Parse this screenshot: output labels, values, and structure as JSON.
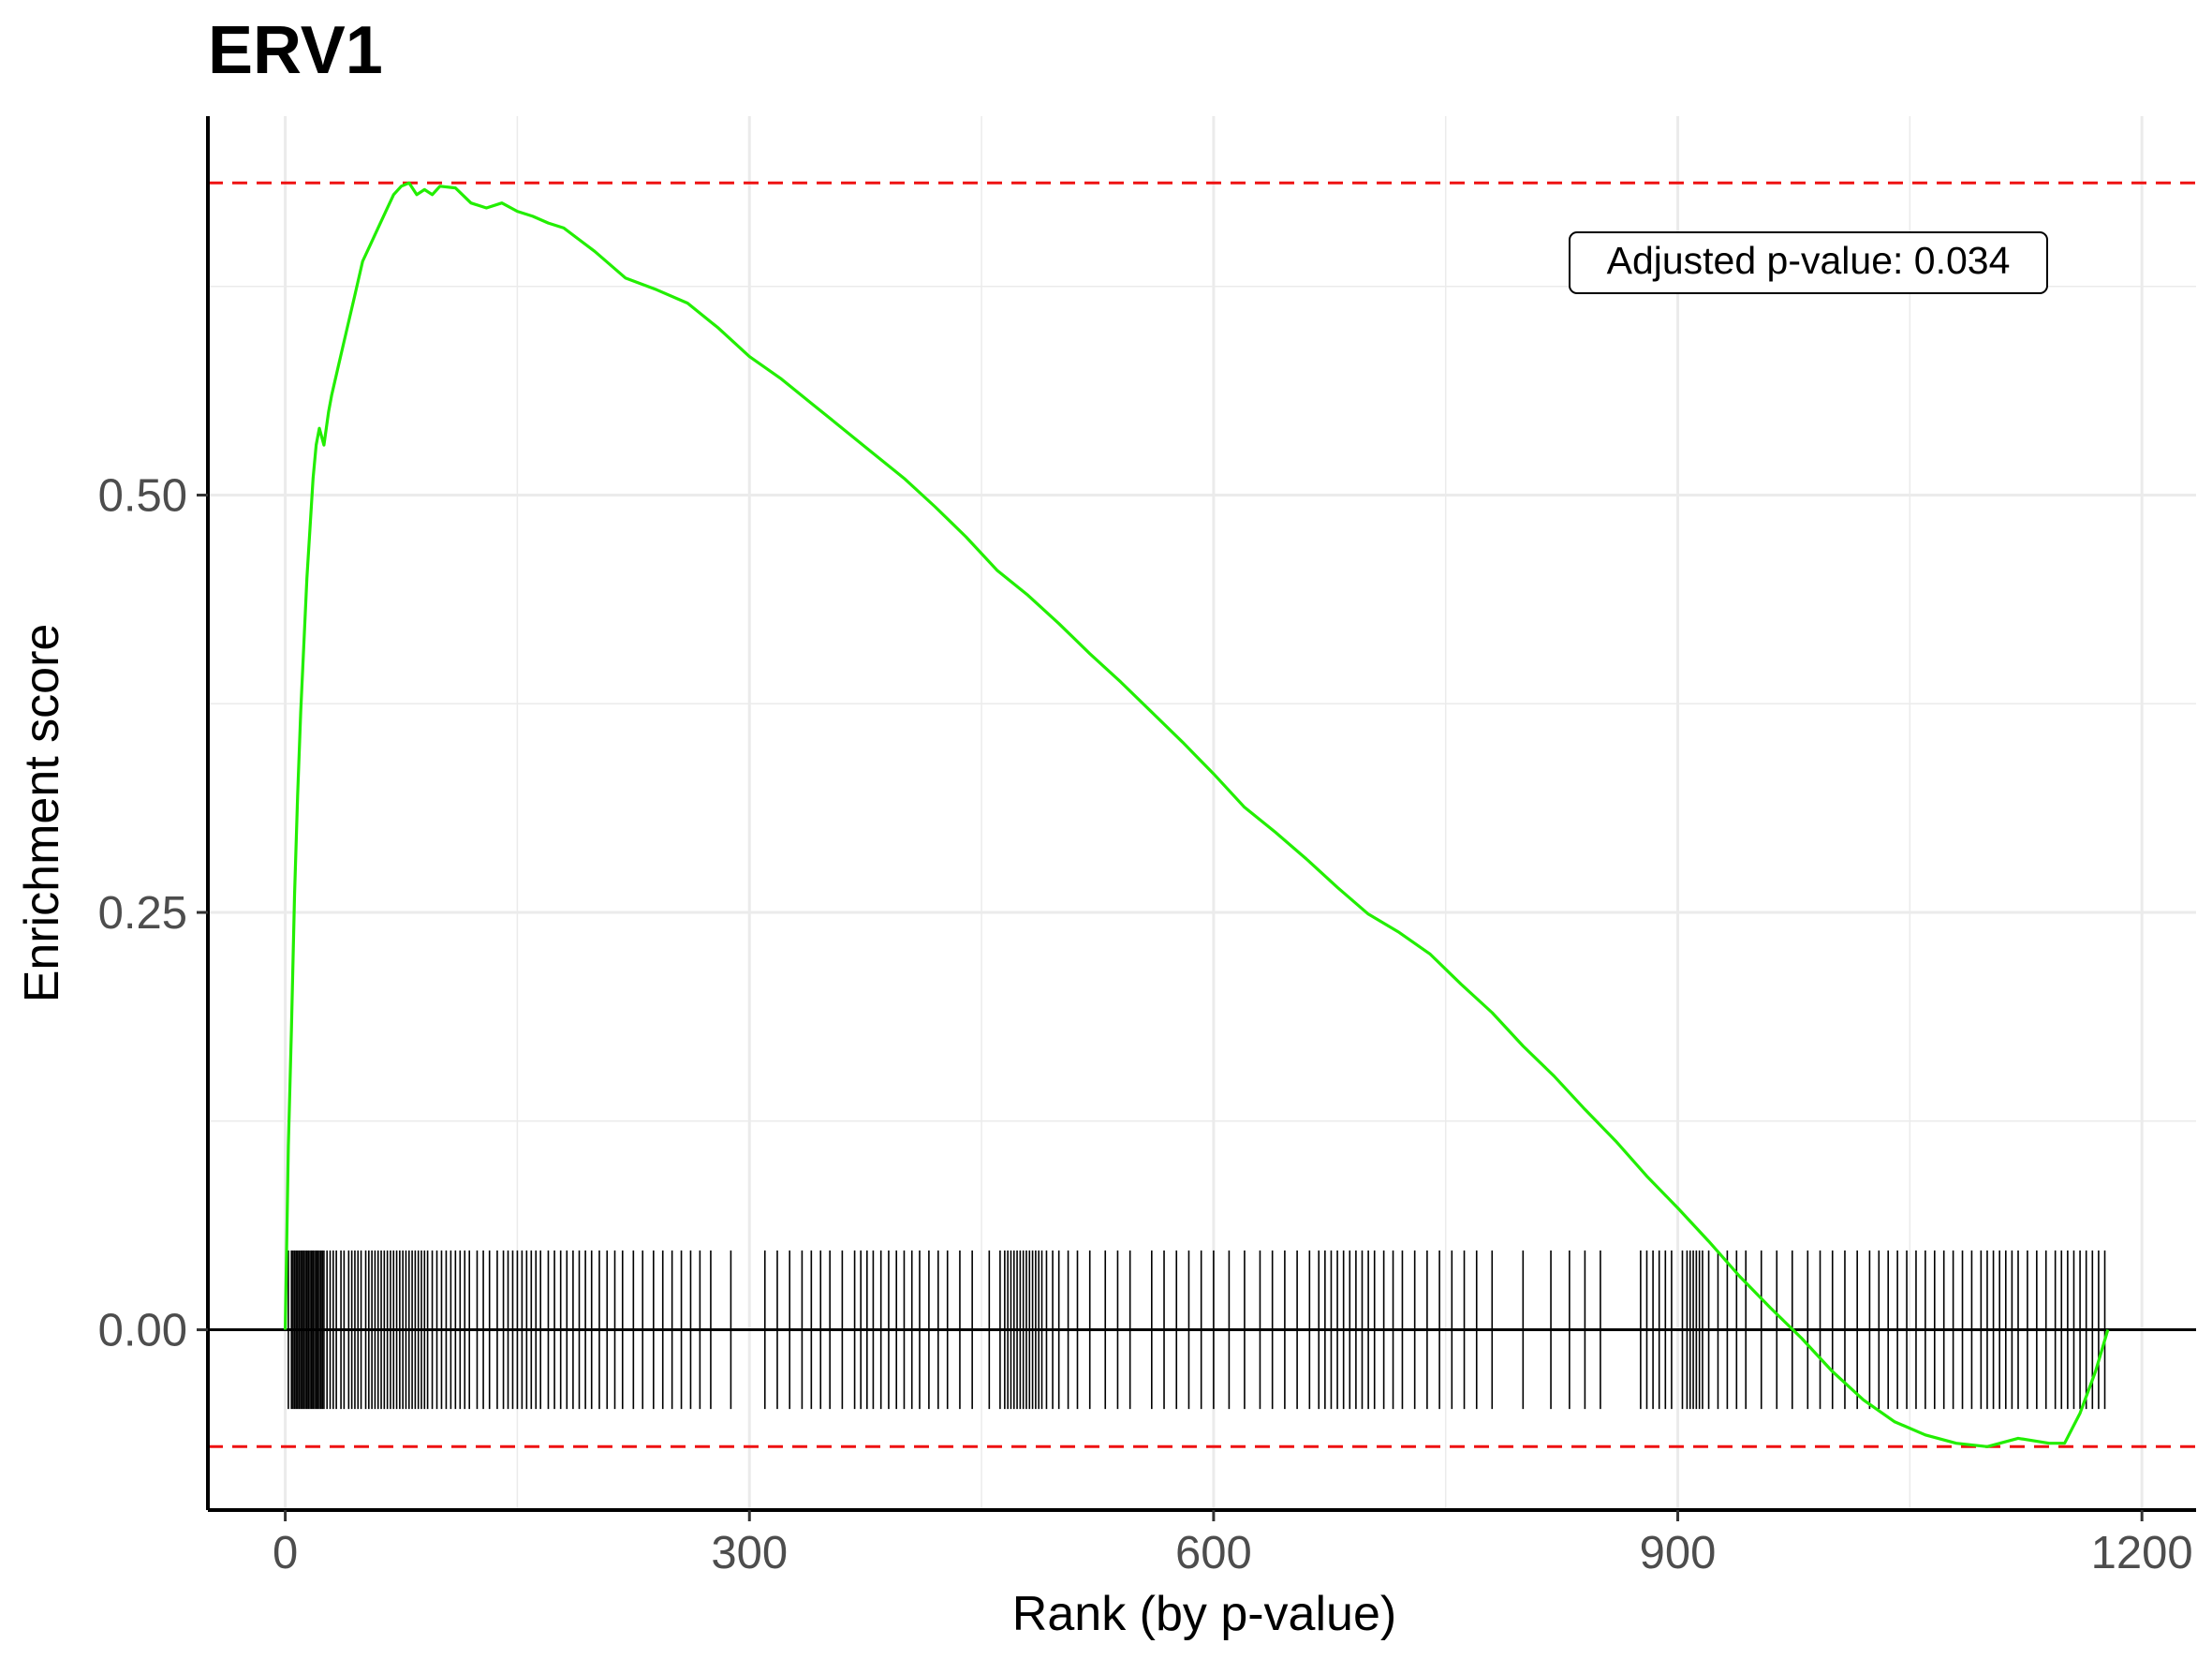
{
  "chart_data": {
    "type": "line",
    "title": "ERV1",
    "xlabel": "Rank (by p-value)",
    "ylabel": "Enrichment score",
    "xlim": [
      -50,
      1235
    ],
    "ylim": [
      -0.108,
      0.727
    ],
    "xticks": [
      0,
      300,
      600,
      900,
      1200
    ],
    "xtick_labels": [
      "0",
      "300",
      "600",
      "900",
      "1200"
    ],
    "yticks": [
      0.0,
      0.25,
      0.5
    ],
    "ytick_labels": [
      "0.00",
      "0.25",
      "0.50"
    ],
    "minor_xticks": [
      150,
      450,
      750,
      1050
    ],
    "minor_yticks": [
      0.125,
      0.375,
      0.625
    ],
    "grid": true,
    "legend": "none",
    "annotation": "Adjusted p-value: 0.034",
    "annotation_position": "top-right",
    "thresholds": [
      0.687,
      -0.07
    ],
    "zero_line": 0,
    "colors": {
      "curve": "#22ee00",
      "threshold": "#ee1111",
      "ticks": "#000000",
      "grid": "#ebebeb"
    },
    "series": [
      {
        "x": [
          0,
          2,
          4,
          6,
          8,
          10,
          12,
          14,
          16,
          18,
          20,
          22,
          25,
          28,
          30,
          35,
          40,
          45,
          50,
          55,
          60,
          65,
          70,
          75,
          80,
          85,
          90,
          95,
          100,
          110,
          120,
          130,
          140,
          150,
          160,
          170,
          180,
          190,
          200,
          220,
          240,
          260,
          280,
          300,
          320,
          340,
          360,
          380,
          400,
          420,
          440,
          460,
          480,
          500,
          520,
          540,
          560,
          580,
          600,
          620,
          640,
          660,
          680,
          700,
          720,
          740,
          760,
          780,
          800,
          820,
          840,
          860,
          880,
          900,
          920,
          940,
          960,
          980,
          1000,
          1020,
          1040,
          1060,
          1080,
          1100,
          1120,
          1140,
          1150,
          1160,
          1170,
          1178
        ],
        "y": [
          0.0,
          0.11,
          0.18,
          0.26,
          0.32,
          0.37,
          0.41,
          0.45,
          0.48,
          0.51,
          0.53,
          0.54,
          0.53,
          0.55,
          0.56,
          0.58,
          0.6,
          0.62,
          0.64,
          0.65,
          0.66,
          0.67,
          0.68,
          0.685,
          0.687,
          0.68,
          0.683,
          0.68,
          0.685,
          0.684,
          0.675,
          0.672,
          0.675,
          0.67,
          0.667,
          0.663,
          0.66,
          0.653,
          0.646,
          0.63,
          0.623,
          0.615,
          0.6,
          0.583,
          0.57,
          0.555,
          0.54,
          0.525,
          0.51,
          0.493,
          0.475,
          0.455,
          0.44,
          0.423,
          0.405,
          0.388,
          0.37,
          0.352,
          0.333,
          0.313,
          0.298,
          0.282,
          0.265,
          0.249,
          0.238,
          0.225,
          0.207,
          0.19,
          0.17,
          0.152,
          0.132,
          0.113,
          0.092,
          0.073,
          0.053,
          0.032,
          0.013,
          -0.005,
          -0.025,
          -0.042,
          -0.055,
          -0.063,
          -0.068,
          -0.07,
          -0.065,
          -0.068,
          -0.068,
          -0.05,
          -0.025,
          0.0
        ]
      }
    ],
    "hit_ranks": [
      2,
      4,
      5,
      6,
      7,
      8,
      9,
      10,
      11,
      12,
      13,
      14,
      15,
      16,
      17,
      18,
      19,
      20,
      21,
      22,
      23,
      24,
      25,
      27,
      29,
      31,
      33,
      36,
      38,
      41,
      43,
      45,
      47,
      49,
      52,
      54,
      56,
      58,
      60,
      62,
      64,
      66,
      68,
      70,
      72,
      74,
      76,
      78,
      80,
      82,
      84,
      86,
      88,
      90,
      92,
      95,
      98,
      101,
      104,
      107,
      110,
      113,
      116,
      119,
      124,
      128,
      132,
      137,
      141,
      144,
      147,
      150,
      153,
      156,
      159,
      162,
      165,
      170,
      174,
      178,
      182,
      186,
      190,
      194,
      198,
      203,
      208,
      213,
      218,
      225,
      231,
      238,
      244,
      250,
      256,
      262,
      268,
      275,
      288,
      310,
      318,
      326,
      334,
      340,
      346,
      352,
      360,
      368,
      372,
      376,
      380,
      385,
      390,
      395,
      400,
      405,
      410,
      416,
      422,
      428,
      436,
      444,
      455,
      462,
      465,
      467,
      469,
      471,
      473,
      475,
      477,
      479,
      481,
      483,
      485,
      487,
      489,
      492,
      496,
      500,
      506,
      512,
      520,
      530,
      538,
      546,
      560,
      568,
      576,
      584,
      592,
      600,
      610,
      620,
      630,
      638,
      646,
      654,
      662,
      668,
      672,
      676,
      680,
      684,
      688,
      692,
      696,
      700,
      704,
      710,
      716,
      722,
      730,
      738,
      746,
      754,
      762,
      770,
      780,
      800,
      818,
      830,
      840,
      850,
      876,
      880,
      884,
      888,
      892,
      896,
      903,
      906,
      908,
      910,
      912,
      914,
      916,
      920,
      926,
      932,
      938,
      944,
      954,
      964,
      974,
      984,
      992,
      1000,
      1008,
      1016,
      1024,
      1030,
      1036,
      1042,
      1048,
      1054,
      1060,
      1066,
      1072,
      1078,
      1084,
      1090,
      1096,
      1100,
      1104,
      1108,
      1112,
      1116,
      1120,
      1126,
      1132,
      1138,
      1144,
      1148,
      1152,
      1156,
      1160,
      1164,
      1168,
      1172,
      1176
    ]
  }
}
